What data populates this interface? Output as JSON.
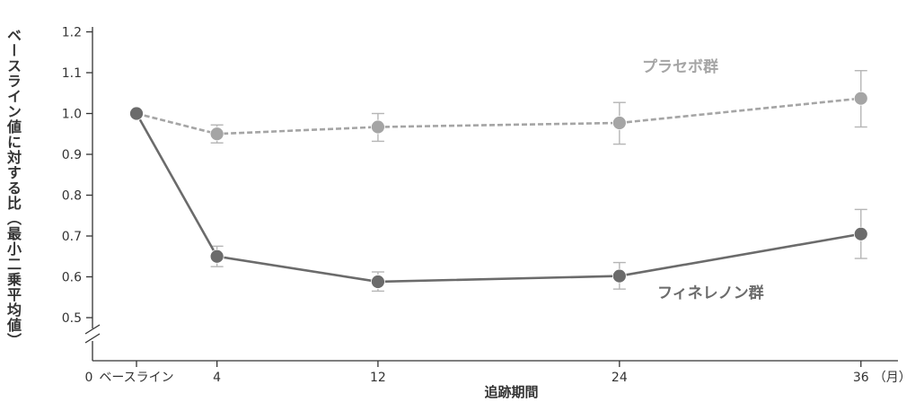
{
  "chart_data": {
    "type": "line",
    "xlabel": "追跡期間",
    "ylabel": "ベースライン値に対する比（最小二乗平均値）",
    "x_origin_label": "0",
    "x_unit_label": "（月）",
    "categories": [
      "ベースライン",
      "4",
      "12",
      "24",
      "36"
    ],
    "x": [
      0,
      4,
      12,
      24,
      36
    ],
    "ylim": [
      0.5,
      1.2
    ],
    "yticks": [
      "0.5",
      "0.6",
      "0.7",
      "0.8",
      "0.9",
      "1.0",
      "1.1",
      "1.2"
    ],
    "axis_break": true,
    "grid": false,
    "series": [
      {
        "name": "プラセボ群",
        "style": "dashed",
        "color": "#a5a5a5",
        "values": [
          1.0,
          0.95,
          0.967,
          0.977,
          1.037
        ],
        "error_low": [
          null,
          0.928,
          0.932,
          0.925,
          0.967
        ],
        "error_high": [
          null,
          0.972,
          1.0,
          1.027,
          1.105
        ]
      },
      {
        "name": "フィネレノン群",
        "style": "solid",
        "color": "#6b6b6b",
        "values": [
          1.0,
          0.65,
          0.588,
          0.602,
          0.705
        ],
        "error_low": [
          null,
          0.625,
          0.565,
          0.57,
          0.645
        ],
        "error_high": [
          null,
          0.675,
          0.612,
          0.635,
          0.765
        ]
      }
    ]
  }
}
